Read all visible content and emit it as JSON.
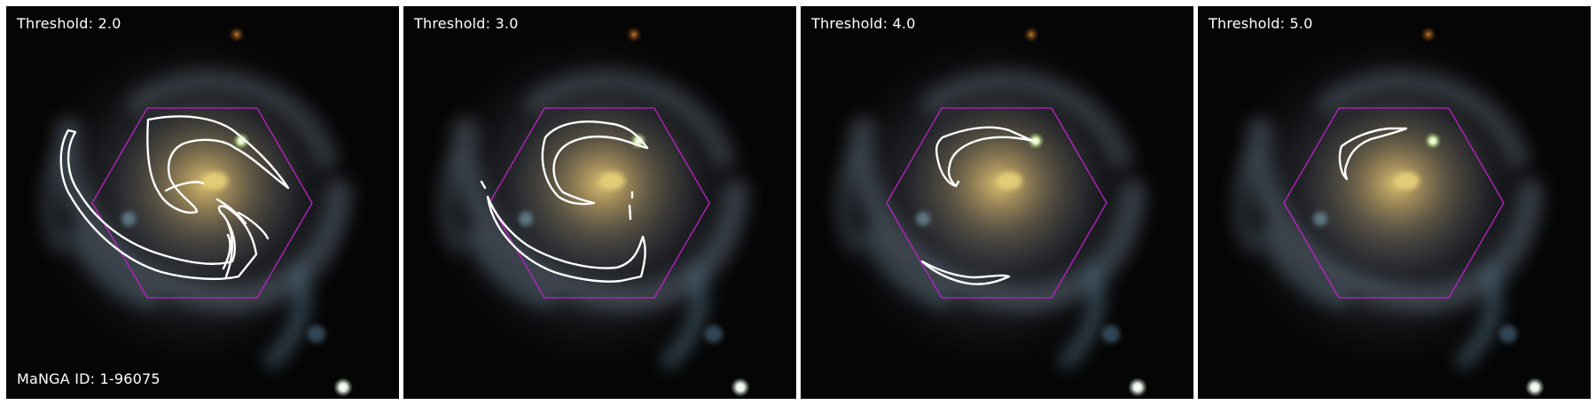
{
  "galaxy": {
    "manga_id_label": "MaNGA ID: 1-96075"
  },
  "panels": [
    {
      "threshold_label": "Threshold: 2.0"
    },
    {
      "threshold_label": "Threshold: 3.0"
    },
    {
      "threshold_label": "Threshold: 4.0"
    },
    {
      "threshold_label": "Threshold: 5.0"
    }
  ],
  "colors": {
    "background": "#050505",
    "contour": "#ffffff",
    "ifu_hexagon": "#c021c8",
    "galaxy_core": "#b9a35a",
    "galaxy_arms": "#5f6f7d",
    "foreground_star_green": "#d8f0b0",
    "foreground_star_white": "#eef2e8",
    "background_source_orange": "#a86520"
  }
}
